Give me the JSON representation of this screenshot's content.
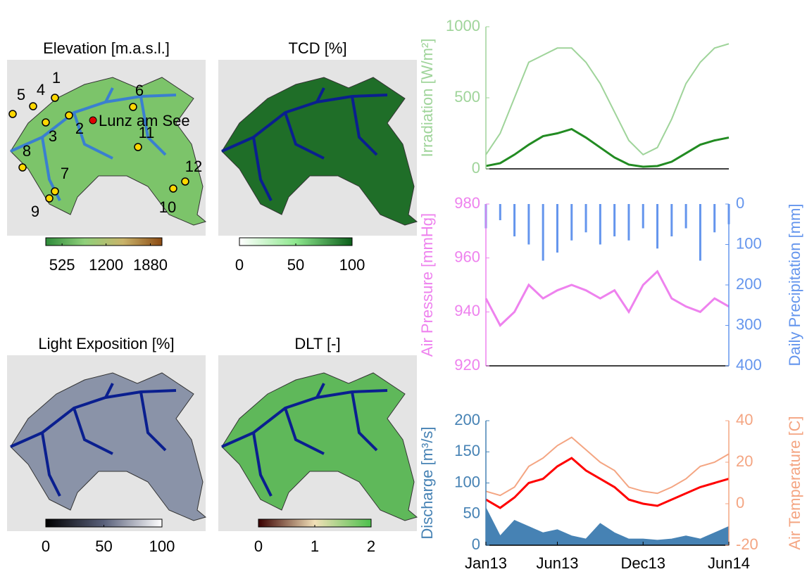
{
  "maps": [
    {
      "title": "Elevation [m.a.s.l.]",
      "colorbar": {
        "colors": [
          "#2e8b3a",
          "#8fd07a",
          "#c9b36a",
          "#8b4a12"
        ],
        "clim": [
          275,
          2058
        ],
        "ticks": [
          525,
          1200,
          1880
        ]
      },
      "sites": [
        "1",
        "2",
        "3",
        "4",
        "5",
        "6",
        "7",
        "8",
        "9",
        "10",
        "11",
        "12"
      ],
      "town": "Lunz am See"
    },
    {
      "title": "TCD [%]",
      "colorbar": {
        "colors": [
          "#ffffff",
          "#8ee88e",
          "#0b5e1a"
        ],
        "clim": [
          0,
          100
        ],
        "ticks": [
          0,
          50,
          100
        ]
      }
    },
    {
      "title": "Light Exposition [%]",
      "colorbar": {
        "colors": [
          "#000000",
          "#59607a",
          "#ffffff"
        ],
        "clim": [
          0,
          100
        ],
        "ticks": [
          0,
          50,
          100
        ]
      }
    },
    {
      "title": "DLT [-]",
      "colorbar": {
        "colors": [
          "#3a0000",
          "#f2e0b8",
          "#4cc04c"
        ],
        "clim": [
          0,
          2
        ],
        "ticks": [
          0,
          1,
          2
        ]
      }
    }
  ],
  "chart_data": [
    {
      "type": "line",
      "ylabel": "Irradiation [W/m²]",
      "ylim": [
        0,
        1000
      ],
      "yticks": [
        0,
        500,
        1000
      ],
      "series": [
        {
          "color": "#9fd49a",
          "values": [
            100,
            250,
            500,
            750,
            800,
            850,
            850,
            750,
            600,
            400,
            200,
            100,
            150,
            350,
            600,
            750,
            850,
            880
          ]
        },
        {
          "color": "#228b22",
          "values": [
            20,
            40,
            100,
            170,
            230,
            250,
            280,
            220,
            150,
            80,
            30,
            15,
            20,
            50,
            110,
            170,
            200,
            220
          ]
        }
      ]
    },
    {
      "type": "line",
      "ylabel": "Air Pressure [mmHg]",
      "y2label": "Daily Precipitation [mm]",
      "ylim": [
        920,
        980
      ],
      "yticks": [
        920,
        940,
        960,
        980
      ],
      "y2lim": [
        0,
        400
      ],
      "y2ticks": [
        0,
        100,
        200,
        300,
        400
      ],
      "y2_reversed": true,
      "series": [
        {
          "color": "#6495ed",
          "axis": "y2",
          "kind": "bar",
          "values": [
            60,
            40,
            80,
            100,
            140,
            120,
            90,
            70,
            100,
            80,
            90,
            60,
            110,
            80,
            60,
            140,
            70,
            50
          ]
        },
        {
          "color": "#ee82ee",
          "values": [
            945,
            935,
            940,
            950,
            945,
            948,
            950,
            948,
            945,
            948,
            940,
            950,
            955,
            945,
            942,
            940,
            945,
            942
          ]
        }
      ]
    },
    {
      "type": "line",
      "ylabel": "Discharge [m³/s]",
      "y2label": "Air Temperature [C]",
      "x": [
        "Jan13",
        null,
        null,
        null,
        null,
        "Jun13",
        null,
        null,
        null,
        null,
        null,
        "Dec13",
        null,
        null,
        null,
        null,
        null,
        "Jun14"
      ],
      "ylim": [
        0,
        200
      ],
      "yticks": [
        0,
        50,
        100,
        150,
        200
      ],
      "y2lim": [
        -20,
        40
      ],
      "y2ticks": [
        -20,
        0,
        20,
        40
      ],
      "series": [
        {
          "color": "#4682b4",
          "kind": "area",
          "values": [
            60,
            15,
            40,
            30,
            20,
            25,
            15,
            10,
            35,
            20,
            10,
            10,
            8,
            10,
            15,
            10,
            20,
            30
          ]
        },
        {
          "color": "#f4a582",
          "axis": "y2",
          "values": [
            6,
            4,
            8,
            18,
            22,
            28,
            32,
            26,
            20,
            16,
            8,
            6,
            5,
            8,
            12,
            18,
            20,
            24
          ]
        },
        {
          "color": "#ff0000",
          "axis": "y2",
          "values": [
            2,
            -2,
            3,
            10,
            12,
            18,
            22,
            16,
            12,
            8,
            2,
            0,
            -1,
            2,
            5,
            8,
            10,
            12
          ]
        }
      ]
    }
  ]
}
